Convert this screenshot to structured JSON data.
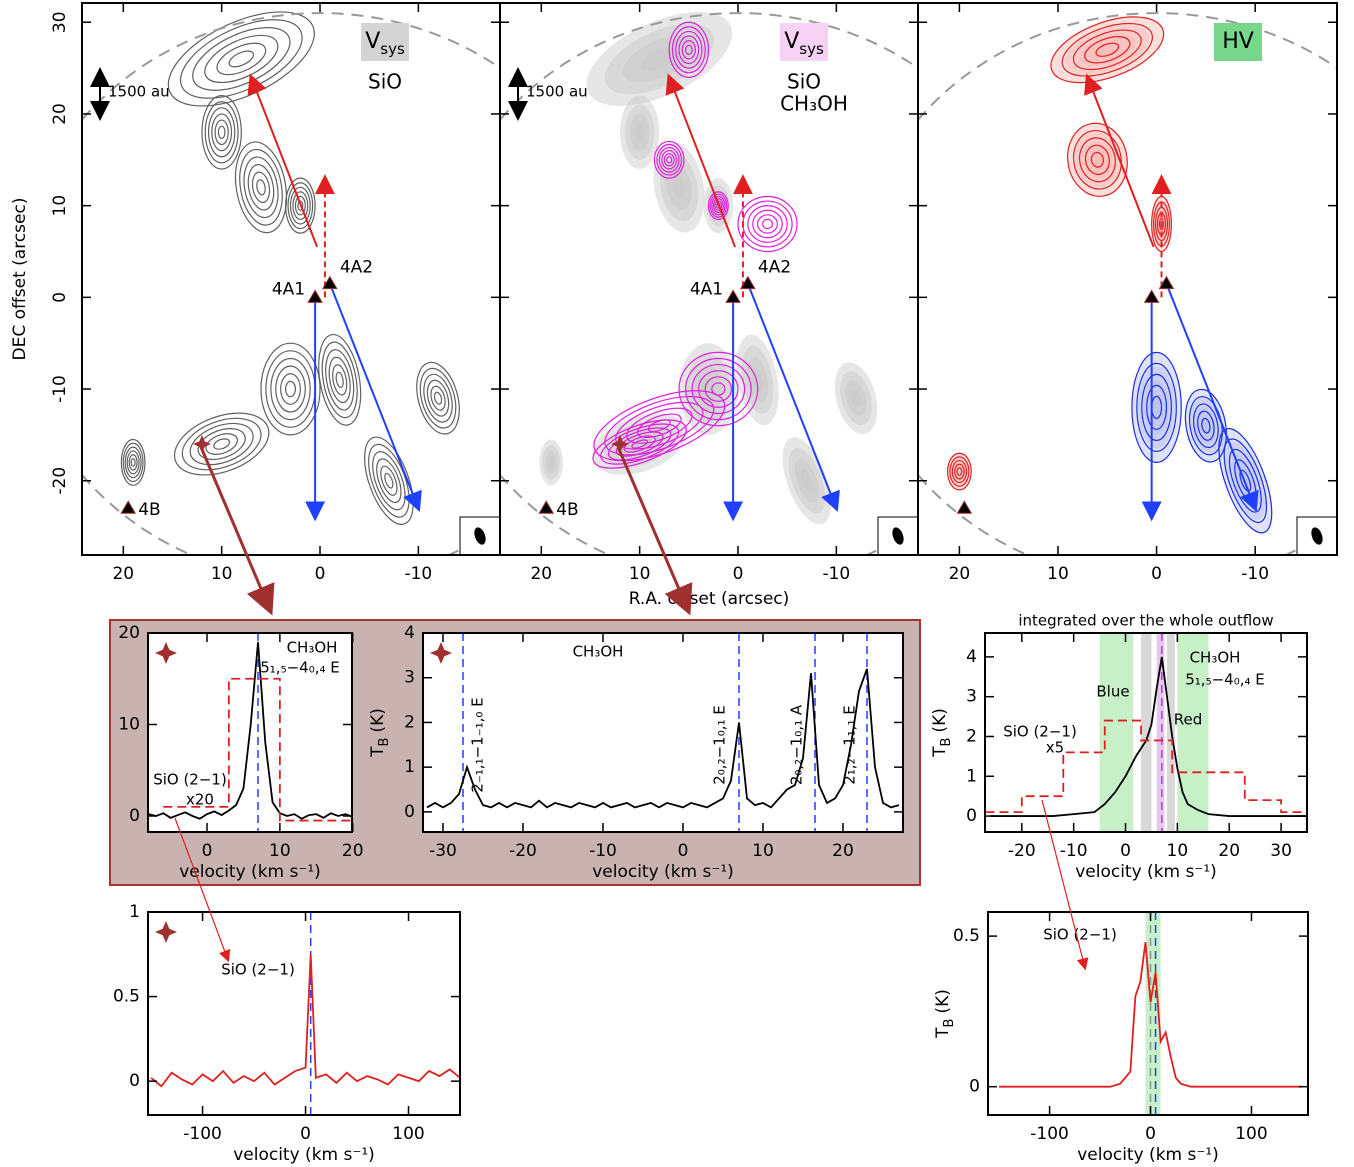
{
  "chart_data": [
    {
      "type": "map",
      "label": "V",
      "label_sub": "sys",
      "label_bg": "#d4d4d4",
      "lines": [
        {
          "text": "SiO",
          "color": "#000000"
        }
      ],
      "ylabel": "DEC offset (arcsec)",
      "scale_bar": "1500 au",
      "ytick_labels": true,
      "xlim": [
        24.2,
        -18.3
      ],
      "ylim": [
        -28.1,
        32.1
      ],
      "xticks": [
        20,
        10,
        0,
        -10
      ],
      "yticks": [
        -20,
        -10,
        0,
        10,
        20,
        30
      ],
      "sources": [
        {
          "name": "4A1",
          "x": 0.5,
          "y": 0
        },
        {
          "name": "4A2",
          "x": -1,
          "y": 1.5
        },
        {
          "name": "4B",
          "x": 19.5,
          "y": -23
        }
      ]
    },
    {
      "type": "map",
      "label": "V",
      "label_sub": "sys",
      "label_bg": "#f6d2f4",
      "lines": [
        {
          "text": "SiO",
          "color": "#000000"
        },
        {
          "text": "CH₃OH",
          "color": "#e01ee0"
        }
      ],
      "xlabel": "R.A. offset (arcsec)",
      "scale_bar": "1500 au",
      "ytick_labels": false,
      "xlim": [
        24.2,
        -18.3
      ],
      "ylim": [
        -28.1,
        32.1
      ],
      "xticks": [
        20,
        10,
        0,
        -10
      ],
      "yticks": [
        -20,
        -10,
        0,
        10,
        20,
        30
      ],
      "sources": [
        {
          "name": "4A1",
          "x": 0.5,
          "y": 0
        },
        {
          "name": "4A2",
          "x": -1,
          "y": 1.5
        },
        {
          "name": "4B",
          "x": 19.5,
          "y": -23
        }
      ]
    },
    {
      "type": "map",
      "label": "HV",
      "label_bg": "#78d68a",
      "ytick_labels": false,
      "xlim": [
        24.2,
        -18.3
      ],
      "ylim": [
        -28.1,
        32.1
      ],
      "xticks": [
        20,
        10,
        0,
        -10
      ],
      "yticks": [
        -20,
        -10,
        0,
        10,
        20,
        30
      ],
      "sources": [
        {
          "x": 0.5,
          "y": 0
        },
        {
          "x": -1,
          "y": 1.5
        },
        {
          "x": 19.5,
          "y": -23
        }
      ]
    },
    {
      "type": "spectrum",
      "xlabel": "velocity (km s⁻¹)",
      "xlim": [
        -8.1,
        19.9
      ],
      "ylim": [
        -1.75,
        20
      ],
      "xticks": [
        0,
        10,
        20
      ],
      "yticks": [
        0,
        10,
        20
      ],
      "vlines": [
        {
          "x": 7,
          "color": "#2040ff"
        }
      ],
      "series": [
        {
          "color": "#000000",
          "x": [
            -8,
            -7,
            -6,
            -5,
            -4,
            -3,
            -2,
            -1,
            0,
            1,
            2,
            3,
            4,
            5,
            6,
            7,
            8,
            9,
            10,
            11,
            12,
            13,
            14,
            15,
            16,
            17,
            18,
            19,
            20
          ],
          "values": [
            0.2,
            0,
            0.3,
            -0.2,
            0.1,
            0.4,
            0,
            -0.3,
            0.2,
            0.5,
            0.1,
            0.6,
            1.2,
            3,
            10,
            19,
            8,
            1.5,
            0.3,
            0,
            0.2,
            -0.3,
            0.1,
            0.2,
            -0.2,
            0.3,
            0,
            0.2,
            -0.1
          ]
        },
        {
          "color": "#e02020",
          "dash": true,
          "x": [
            -6,
            3,
            3,
            10,
            10,
            20
          ],
          "values": [
            1,
            1,
            15,
            15,
            -0.5,
            -0.5
          ]
        }
      ],
      "annotations": [
        {
          "text": "CH₃OH",
          "color": "#000000"
        },
        {
          "text": "5₁,₅−4₀,₄ E",
          "color": "#000000"
        },
        {
          "text": "SiO (2−1)",
          "color": "#e02020"
        },
        {
          "text": "x20",
          "color": "#e02020"
        }
      ]
    },
    {
      "type": "spectrum",
      "xlabel": "velocity (km s⁻¹)",
      "ylabel": "T",
      "ylabel_sub": "B",
      "ylabel_unit": "(K)",
      "xlim": [
        -32.5,
        27.5
      ],
      "ylim": [
        -0.45,
        4
      ],
      "xticks": [
        -30,
        -20,
        -10,
        0,
        10,
        20
      ],
      "yticks": [
        0,
        1,
        2,
        3,
        4
      ],
      "vlines": [
        {
          "x": -27.5,
          "color": "#2040ff"
        },
        {
          "x": 7,
          "color": "#2040ff"
        },
        {
          "x": 16.5,
          "color": "#2040ff"
        },
        {
          "x": 23,
          "color": "#2040ff"
        }
      ],
      "series": [
        {
          "color": "#000000",
          "x": [
            -32,
            -31,
            -30,
            -29,
            -28,
            -27,
            -26,
            -25,
            -24,
            -23,
            -22,
            -21,
            -20,
            -19,
            -18,
            -17,
            -16,
            -15,
            -14,
            -13,
            -12,
            -11,
            -10,
            -9,
            -8,
            -7,
            -6,
            -5,
            -4,
            -3,
            -2,
            -1,
            0,
            1,
            2,
            3,
            4,
            5,
            6,
            7,
            8,
            9,
            10,
            11,
            12,
            13,
            14,
            15,
            16,
            17,
            18,
            19,
            20,
            21,
            22,
            23,
            24,
            25,
            26,
            27
          ],
          "values": [
            0.1,
            0.2,
            0.1,
            0.2,
            0.4,
            1.0,
            0.5,
            0.15,
            0.1,
            0.2,
            0.1,
            0.2,
            0.15,
            0.1,
            0.25,
            0.1,
            0.2,
            0.15,
            0.1,
            0.2,
            0.15,
            0.1,
            0.2,
            0.1,
            0.15,
            0.2,
            0.1,
            0.15,
            0.2,
            0.1,
            0.2,
            0.15,
            0.1,
            0.2,
            0.15,
            0.1,
            0.2,
            0.3,
            0.7,
            2.0,
            0.3,
            0.15,
            0.2,
            0.1,
            0.3,
            0.5,
            0.6,
            1.2,
            3.1,
            0.6,
            0.2,
            0.3,
            0.6,
            1.5,
            2.7,
            3.2,
            1.0,
            0.2,
            0.1,
            0.15
          ]
        }
      ],
      "annotations": [
        {
          "text": "CH₃OH",
          "color": "#000000"
        },
        {
          "text": "2₋₁,₁−1₋₁,₀ E",
          "color": "#000000"
        },
        {
          "text": "2₀,₂−1₀,₁ E",
          "color": "#000000"
        },
        {
          "text": "2₀,₂−1₀,₁ A",
          "color": "#000000"
        },
        {
          "text": "2₁,₂−1₁,₁ E",
          "color": "#000000"
        }
      ]
    },
    {
      "type": "spectrum",
      "xlabel": "velocity (km s⁻¹)",
      "xlim": [
        -153,
        150
      ],
      "ylim": [
        -0.2,
        1
      ],
      "xticks": [
        -100,
        0,
        100
      ],
      "yticks": [
        0,
        0.5,
        1
      ],
      "vlines": [
        {
          "x": 5,
          "color": "#2040ff"
        }
      ],
      "series": [
        {
          "color": "#e02020",
          "x": [
            -150,
            -140,
            -130,
            -120,
            -110,
            -100,
            -90,
            -80,
            -70,
            -60,
            -50,
            -40,
            -30,
            -20,
            -10,
            0,
            5,
            10,
            20,
            30,
            40,
            50,
            60,
            70,
            80,
            90,
            100,
            110,
            120,
            130,
            140,
            150
          ],
          "values": [
            0.02,
            -0.03,
            0.05,
            0.01,
            -0.02,
            0.04,
            0.0,
            0.06,
            -0.01,
            0.03,
            0.0,
            0.05,
            -0.02,
            0.02,
            0.06,
            0.08,
            0.75,
            0.02,
            0.04,
            -0.01,
            0.05,
            0.0,
            0.03,
            0.01,
            -0.02,
            0.04,
            0.02,
            0.0,
            0.06,
            0.03,
            0.07,
            0.02
          ]
        }
      ],
      "annotations": [
        {
          "text": "SiO (2−1)",
          "color": "#e02020"
        }
      ]
    },
    {
      "type": "spectrum",
      "title": "integrated over the whole outflow",
      "xlabel": "velocity (km s⁻¹)",
      "ylabel": "T",
      "ylabel_sub": "B",
      "ylabel_unit": "(K)",
      "xlim": [
        -27.1,
        35
      ],
      "ylim": [
        -0.4,
        4.6
      ],
      "xticks": [
        -20,
        -10,
        0,
        10,
        20,
        30
      ],
      "yticks": [
        0,
        1,
        2,
        3,
        4
      ],
      "bands": [
        {
          "x0": -5,
          "x1": 1.5,
          "color": "#c8f0c8"
        },
        {
          "x0": 3,
          "x1": 5,
          "color": "#d8d8d8"
        },
        {
          "x0": 6,
          "x1": 7.5,
          "color": "#e6c8ee"
        },
        {
          "x0": 8,
          "x1": 9.5,
          "color": "#d8d8d8"
        },
        {
          "x0": 10,
          "x1": 16,
          "color": "#c8f0c8"
        }
      ],
      "vlines": [
        {
          "x": 7,
          "color": "#b040d0"
        }
      ],
      "series": [
        {
          "color": "#000000",
          "x": [
            -26,
            -22,
            -18,
            -14,
            -10,
            -6,
            -4,
            -2,
            0,
            2,
            3,
            4,
            5,
            6,
            7,
            8,
            9,
            10,
            11,
            12,
            14,
            16,
            20,
            24,
            28,
            32,
            35
          ],
          "values": [
            0,
            0,
            0,
            0,
            0.05,
            0.1,
            0.3,
            0.6,
            1.0,
            1.5,
            1.7,
            1.9,
            2.3,
            3.2,
            4.0,
            3.0,
            2.0,
            1.2,
            0.6,
            0.3,
            0.15,
            0.05,
            0,
            0,
            0,
            0,
            0
          ]
        },
        {
          "color": "#e02020",
          "dash": true,
          "x": [
            -27,
            -20,
            -20,
            -12,
            -12,
            -4,
            -4,
            3,
            3,
            9,
            9,
            16,
            16,
            23,
            23,
            30,
            30,
            35
          ],
          "values": [
            0.1,
            0.1,
            0.5,
            0.5,
            1.6,
            1.6,
            2.4,
            2.4,
            1.9,
            1.9,
            1.1,
            1.1,
            1.1,
            1.1,
            0.4,
            0.4,
            0.1,
            0.1
          ]
        }
      ],
      "annotations": [
        {
          "text": "CH₃OH",
          "color": "#000000"
        },
        {
          "text": "5₁,₅−4₀,₄ E",
          "color": "#000000"
        },
        {
          "text": "Blue",
          "color": "#2040ff"
        },
        {
          "text": "Red",
          "color": "#e02020"
        },
        {
          "text": "SiO (2−1)",
          "color": "#e02020"
        },
        {
          "text": "x5",
          "color": "#e02020"
        }
      ]
    },
    {
      "type": "spectrum",
      "xlabel": "velocity (km s⁻¹)",
      "ylabel": "T",
      "ylabel_sub": "B",
      "ylabel_unit": "(K)",
      "xlim": [
        -161,
        156
      ],
      "ylim": [
        -0.094,
        0.58
      ],
      "xticks": [
        -100,
        0,
        100
      ],
      "yticks": [
        0,
        0.5
      ],
      "bands": [
        {
          "x0": -5,
          "x1": 10,
          "color": "#c8f0c8"
        }
      ],
      "vlines": [
        {
          "x": 0,
          "color": "#909090"
        },
        {
          "x": 5,
          "color": "#2040ff"
        }
      ],
      "series": [
        {
          "color": "#e02020",
          "x": [
            -150,
            -120,
            -90,
            -60,
            -40,
            -30,
            -20,
            -15,
            -10,
            -5,
            0,
            5,
            10,
            15,
            20,
            25,
            30,
            40,
            60,
            90,
            120,
            150
          ],
          "values": [
            0,
            0,
            0,
            0,
            0,
            0.01,
            0.05,
            0.3,
            0.35,
            0.48,
            0.28,
            0.38,
            0.15,
            0.18,
            0.1,
            0.03,
            0.01,
            0,
            0,
            0,
            0,
            0
          ]
        }
      ],
      "annotations": [
        {
          "text": "SiO (2−1)",
          "color": "#e02020"
        }
      ]
    }
  ]
}
